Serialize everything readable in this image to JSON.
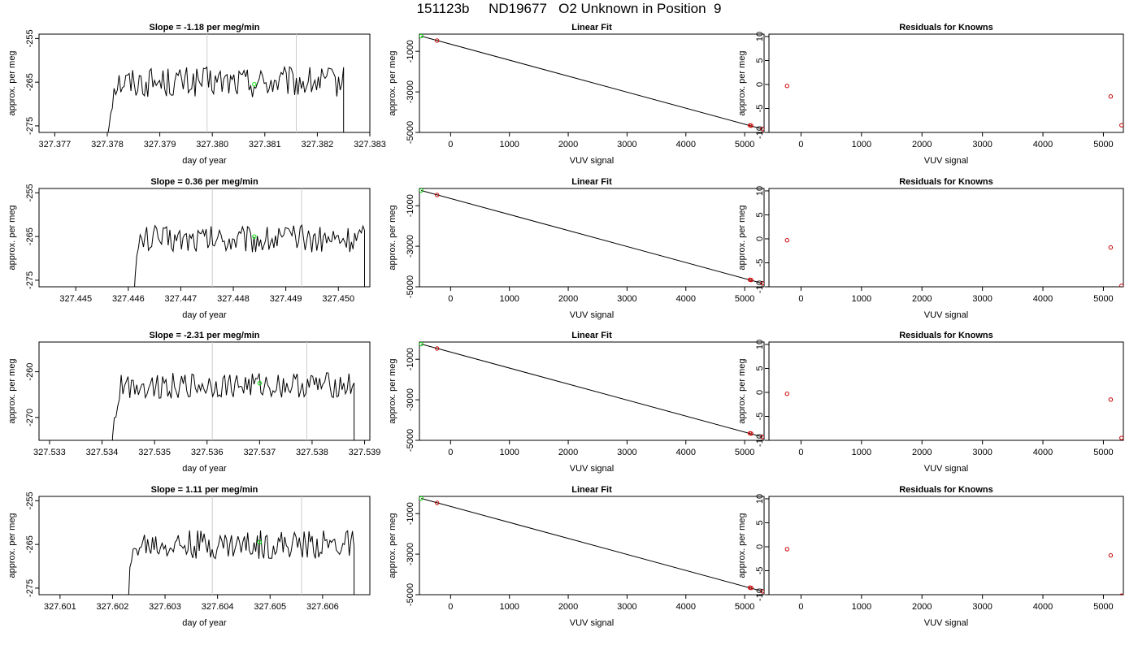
{
  "title": "151123b     ND19677   O2 Unknown in Position  9",
  "chart_data": [
    {
      "type": "line",
      "title": "Slope =  -1.18  per meg/min",
      "xlabel": "day of year",
      "ylabel": "approx. per meg",
      "xlim": [
        327.3767,
        327.383
      ],
      "ylim": [
        -276.5,
        -254.0
      ],
      "xticks": [
        "327.377",
        "327.378",
        "327.379",
        "327.380",
        "327.381",
        "327.382",
        "327.383"
      ],
      "yticks": [
        "-275",
        "-265",
        "-255"
      ],
      "vlines": [
        327.3799,
        327.3816
      ],
      "start": 327.378,
      "end": 327.3825,
      "mean": -265,
      "amplitude": 3.5,
      "point": {
        "x": 327.3808,
        "y": -265.5
      }
    },
    {
      "type": "scatter",
      "title": "Linear Fit",
      "xlabel": "VUV signal",
      "ylabel": "approx. per meg",
      "xlim": [
        -530,
        5330
      ],
      "ylim": [
        -5000,
        -150
      ],
      "xticks": [
        "0",
        "1000",
        "2000",
        "3000",
        "4000",
        "5000"
      ],
      "yticks": [
        "-5000",
        "-3000",
        "-1000"
      ],
      "fit": [
        [
          -500,
          -250
        ],
        [
          5300,
          -4830
        ]
      ],
      "knowns": [
        {
          "x": -230,
          "y": -470
        },
        {
          "x": 5090,
          "y": -4650
        },
        {
          "x": 5110,
          "y": -4665
        },
        {
          "x": 5300,
          "y": -4830
        }
      ],
      "unknown": {
        "x": -500,
        "y": -250
      }
    },
    {
      "type": "scatter",
      "title": "Residuals for Knowns",
      "xlabel": "VUV signal",
      "ylabel": "approx. per meg",
      "xlim": [
        -530,
        5330
      ],
      "ylim": [
        -10.0,
        10.5
      ],
      "xticks": [
        "0",
        "1000",
        "2000",
        "3000",
        "4000",
        "5000"
      ],
      "yticks": [
        "-10",
        "-5",
        "0",
        "5",
        "10"
      ],
      "points": [
        {
          "x": -230,
          "y": -0.3
        },
        {
          "x": 5120,
          "y": -2.5
        },
        {
          "x": 5300,
          "y": -8.5
        }
      ]
    },
    {
      "type": "line",
      "title": "Slope =  0.36  per meg/min",
      "xlabel": "day of year",
      "ylabel": "approx. per meg",
      "xlim": [
        327.4443,
        327.4506
      ],
      "ylim": [
        -276.5,
        -254.0
      ],
      "xticks": [
        "327.445",
        "327.446",
        "327.447",
        "327.448",
        "327.449",
        "327.450"
      ],
      "yticks": [
        "-275",
        "-265",
        "-255"
      ],
      "vlines": [
        327.4476,
        327.4493
      ],
      "start": 327.4461,
      "end": 327.4505,
      "mean": -265.5,
      "amplitude": 3.2,
      "point": {
        "x": 327.4484,
        "y": -265
      }
    },
    {
      "type": "scatter",
      "title": "Linear Fit",
      "xlabel": "VUV signal",
      "ylabel": "approx. per meg",
      "xlim": [
        -530,
        5330
      ],
      "ylim": [
        -5000,
        -150
      ],
      "xticks": [
        "0",
        "1000",
        "2000",
        "3000",
        "4000",
        "5000"
      ],
      "yticks": [
        "-5000",
        "-3000",
        "-1000"
      ],
      "fit": [
        [
          -500,
          -250
        ],
        [
          5300,
          -4830
        ]
      ],
      "knowns": [
        {
          "x": -230,
          "y": -470
        },
        {
          "x": 5090,
          "y": -4650
        },
        {
          "x": 5110,
          "y": -4665
        },
        {
          "x": 5300,
          "y": -4830
        }
      ],
      "unknown": {
        "x": -500,
        "y": -250
      }
    },
    {
      "type": "scatter",
      "title": "Residuals for Knowns",
      "xlabel": "VUV signal",
      "ylabel": "approx. per meg",
      "xlim": [
        -530,
        5330
      ],
      "ylim": [
        -10.0,
        10.5
      ],
      "xticks": [
        "0",
        "1000",
        "2000",
        "3000",
        "4000",
        "5000"
      ],
      "yticks": [
        "-10",
        "-5",
        "0",
        "5",
        "10"
      ],
      "points": [
        {
          "x": -230,
          "y": -0.3
        },
        {
          "x": 5120,
          "y": -1.8
        },
        {
          "x": 5300,
          "y": -9.8
        }
      ]
    },
    {
      "type": "line",
      "title": "Slope =  -2.31  per meg/min",
      "xlabel": "day of year",
      "ylabel": "approx. per meg",
      "xlim": [
        327.5328,
        327.5391
      ],
      "ylim": [
        -275.0,
        -253.5
      ],
      "xticks": [
        "327.533",
        "327.534",
        "327.535",
        "327.536",
        "327.537",
        "327.538",
        "327.539"
      ],
      "yticks": [
        "-270",
        "-260"
      ],
      "vlines": [
        327.5361,
        327.5379
      ],
      "start": 327.5342,
      "end": 327.5388,
      "mean": -263,
      "amplitude": 2.8,
      "point": {
        "x": 327.537,
        "y": -262.5
      }
    },
    {
      "type": "scatter",
      "title": "Linear Fit",
      "xlabel": "VUV signal",
      "ylabel": "approx. per meg",
      "xlim": [
        -530,
        5330
      ],
      "ylim": [
        -5000,
        -150
      ],
      "xticks": [
        "0",
        "1000",
        "2000",
        "3000",
        "4000",
        "5000"
      ],
      "yticks": [
        "-5000",
        "-3000",
        "-1000"
      ],
      "fit": [
        [
          -500,
          -250
        ],
        [
          5300,
          -4830
        ]
      ],
      "knowns": [
        {
          "x": -230,
          "y": -470
        },
        {
          "x": 5090,
          "y": -4650
        },
        {
          "x": 5110,
          "y": -4665
        },
        {
          "x": 5300,
          "y": -4830
        }
      ],
      "unknown": {
        "x": -500,
        "y": -250
      }
    },
    {
      "type": "scatter",
      "title": "Residuals for Knowns",
      "xlabel": "VUV signal",
      "ylabel": "approx. per meg",
      "xlim": [
        -530,
        5330
      ],
      "ylim": [
        -10.0,
        10.5
      ],
      "xticks": [
        "0",
        "1000",
        "2000",
        "3000",
        "4000",
        "5000"
      ],
      "yticks": [
        "-10",
        "-5",
        "0",
        "5",
        "10"
      ],
      "points": [
        {
          "x": -230,
          "y": -0.3
        },
        {
          "x": 5120,
          "y": -1.5
        },
        {
          "x": 5300,
          "y": -9.5
        }
      ]
    },
    {
      "type": "line",
      "title": "Slope =  1.11  per meg/min",
      "xlabel": "day of year",
      "ylabel": "approx. per meg",
      "xlim": [
        327.6006,
        327.6069
      ],
      "ylim": [
        -276.5,
        -254.0
      ],
      "xticks": [
        "327.601",
        "327.602",
        "327.603",
        "327.604",
        "327.605",
        "327.606"
      ],
      "yticks": [
        "-275",
        "-265",
        "-255"
      ],
      "vlines": [
        327.6039,
        327.6056
      ],
      "start": 327.6023,
      "end": 327.6066,
      "mean": -265,
      "amplitude": 3.3,
      "point": {
        "x": 327.6048,
        "y": -264.5
      }
    },
    {
      "type": "scatter",
      "title": "Linear Fit",
      "xlabel": "VUV signal",
      "ylabel": "approx. per meg",
      "xlim": [
        -530,
        5330
      ],
      "ylim": [
        -5000,
        -150
      ],
      "xticks": [
        "0",
        "1000",
        "2000",
        "3000",
        "4000",
        "5000"
      ],
      "yticks": [
        "-5000",
        "-3000",
        "-1000"
      ],
      "fit": [
        [
          -500,
          -250
        ],
        [
          5300,
          -4830
        ]
      ],
      "knowns": [
        {
          "x": -230,
          "y": -470
        },
        {
          "x": 5090,
          "y": -4650
        },
        {
          "x": 5110,
          "y": -4665
        },
        {
          "x": 5300,
          "y": -4830
        }
      ],
      "unknown": {
        "x": -500,
        "y": -250
      }
    },
    {
      "type": "scatter",
      "title": "Residuals for Knowns",
      "xlabel": "VUV signal",
      "ylabel": "approx. per meg",
      "xlim": [
        -530,
        5330
      ],
      "ylim": [
        -10.0,
        10.5
      ],
      "xticks": [
        "0",
        "1000",
        "2000",
        "3000",
        "4000",
        "5000"
      ],
      "yticks": [
        "-10",
        "-5",
        "0",
        "5",
        "10"
      ],
      "points": [
        {
          "x": -230,
          "y": -0.5
        },
        {
          "x": 5120,
          "y": -1.8
        },
        {
          "x": 5300,
          "y": -10.2
        }
      ]
    }
  ],
  "colors": {
    "unknown_point": "#00dd00",
    "known_point": "#cc0000",
    "line": "#000000",
    "vline": "#cccccc"
  }
}
